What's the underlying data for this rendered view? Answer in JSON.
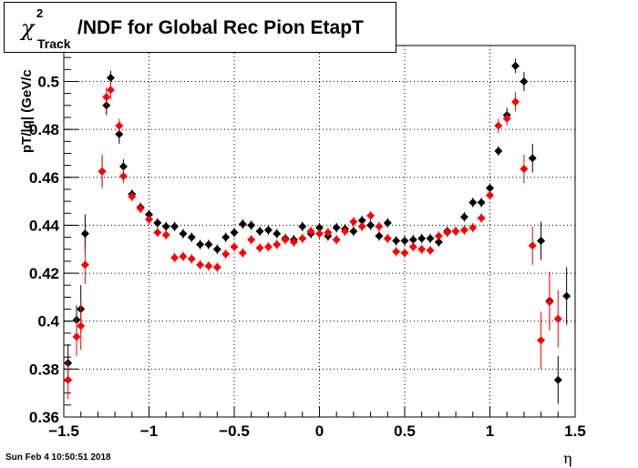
{
  "title": {
    "chi_symbol": "χ",
    "chi_superscript": "2",
    "chi_subscript": "Track",
    "text": "/NDF for Global Rec Pion EtapT"
  },
  "ylabel": "p_T/|q| (GeV/c)",
  "ylabel_visible": "pT/|q| (GeV/c",
  "xlabel": "η",
  "datestamp": "Sun Feb  4 10:50:51 2018",
  "colors": {
    "series_black": "#000000",
    "series_red": "#ff0000",
    "grid": "#000000"
  },
  "chart_data": {
    "type": "scatter",
    "xlim": [
      -1.5,
      1.5
    ],
    "ylim": [
      0.36,
      0.515
    ],
    "grid": true,
    "x_ticks": [
      "−1.5",
      "−1",
      "−0.5",
      "0",
      "0.5",
      "1",
      "1.5"
    ],
    "x_tick_values": [
      -1.5,
      -1,
      -0.5,
      0,
      0.5,
      1,
      1.5
    ],
    "y_ticks": [
      "0.36",
      "0.38",
      "0.4",
      "0.42",
      "0.44",
      "0.46",
      "0.48",
      "0.5"
    ],
    "y_tick_values": [
      0.36,
      0.38,
      0.4,
      0.42,
      0.44,
      0.46,
      0.48,
      0.5
    ],
    "series": [
      {
        "color": "black",
        "points": [
          [
            -1.475,
            0.3825,
            0.008
          ],
          [
            -1.425,
            0.4005,
            0.006
          ],
          [
            -1.4,
            0.405,
            0.01
          ],
          [
            -1.375,
            0.4365,
            0.008
          ],
          [
            -1.275,
            0.4625,
            0.006
          ],
          [
            -1.25,
            0.49,
            0.004
          ],
          [
            -1.225,
            0.5015,
            0.003
          ],
          [
            -1.175,
            0.478,
            0.004
          ],
          [
            -1.15,
            0.4645,
            0.003
          ],
          [
            -1.1,
            0.453,
            0.002
          ],
          [
            -1.05,
            0.4475,
            0.002
          ],
          [
            -1.0,
            0.4445,
            0.002
          ],
          [
            -0.95,
            0.441,
            0.002
          ],
          [
            -0.9,
            0.4395,
            0.002
          ],
          [
            -0.85,
            0.4395,
            0.002
          ],
          [
            -0.8,
            0.4365,
            0.002
          ],
          [
            -0.75,
            0.435,
            0.002
          ],
          [
            -0.7,
            0.432,
            0.002
          ],
          [
            -0.65,
            0.432,
            0.002
          ],
          [
            -0.6,
            0.43,
            0.002
          ],
          [
            -0.55,
            0.435,
            0.002
          ],
          [
            -0.5,
            0.437,
            0.002
          ],
          [
            -0.45,
            0.4405,
            0.002
          ],
          [
            -0.4,
            0.44,
            0.002
          ],
          [
            -0.35,
            0.4375,
            0.002
          ],
          [
            -0.3,
            0.438,
            0.002
          ],
          [
            -0.25,
            0.4365,
            0.002
          ],
          [
            -0.2,
            0.4345,
            0.002
          ],
          [
            -0.15,
            0.434,
            0.002
          ],
          [
            -0.1,
            0.4395,
            0.002
          ],
          [
            -0.05,
            0.4365,
            0.002
          ],
          [
            0.0,
            0.439,
            0.002
          ],
          [
            0.05,
            0.4355,
            0.002
          ],
          [
            0.1,
            0.439,
            0.002
          ],
          [
            0.15,
            0.4385,
            0.002
          ],
          [
            0.2,
            0.4375,
            0.002
          ],
          [
            0.25,
            0.442,
            0.002
          ],
          [
            0.3,
            0.44,
            0.002
          ],
          [
            0.35,
            0.4355,
            0.002
          ],
          [
            0.4,
            0.441,
            0.002
          ],
          [
            0.45,
            0.4335,
            0.002
          ],
          [
            0.5,
            0.4335,
            0.002
          ],
          [
            0.55,
            0.434,
            0.002
          ],
          [
            0.6,
            0.4345,
            0.002
          ],
          [
            0.65,
            0.4345,
            0.002
          ],
          [
            0.7,
            0.433,
            0.002
          ],
          [
            0.75,
            0.4375,
            0.002
          ],
          [
            0.8,
            0.4375,
            0.002
          ],
          [
            0.85,
            0.4435,
            0.002
          ],
          [
            0.9,
            0.4495,
            0.002
          ],
          [
            0.95,
            0.4495,
            0.002
          ],
          [
            1.0,
            0.4555,
            0.002
          ],
          [
            1.05,
            0.471,
            0.002
          ],
          [
            1.1,
            0.486,
            0.003
          ],
          [
            1.15,
            0.5065,
            0.003
          ],
          [
            1.2,
            0.5,
            0.004
          ],
          [
            1.25,
            0.468,
            0.006
          ],
          [
            1.3,
            0.4335,
            0.008
          ],
          [
            1.35,
            0.4085,
            0.012
          ],
          [
            1.4,
            0.3755,
            0.01
          ],
          [
            1.45,
            0.4105,
            0.012
          ]
        ]
      },
      {
        "color": "red",
        "points": [
          [
            -1.475,
            0.3755,
            0.008
          ],
          [
            -1.425,
            0.3935,
            0.008
          ],
          [
            -1.4,
            0.398,
            0.01
          ],
          [
            -1.375,
            0.4235,
            0.008
          ],
          [
            -1.275,
            0.4625,
            0.007
          ],
          [
            -1.25,
            0.4935,
            0.004
          ],
          [
            -1.225,
            0.4965,
            0.004
          ],
          [
            -1.175,
            0.4815,
            0.003
          ],
          [
            -1.15,
            0.4605,
            0.003
          ],
          [
            -1.1,
            0.452,
            0.002
          ],
          [
            -1.05,
            0.447,
            0.002
          ],
          [
            -1.0,
            0.4425,
            0.002
          ],
          [
            -0.95,
            0.437,
            0.002
          ],
          [
            -0.9,
            0.436,
            0.002
          ],
          [
            -0.85,
            0.4265,
            0.002
          ],
          [
            -0.8,
            0.427,
            0.002
          ],
          [
            -0.75,
            0.426,
            0.002
          ],
          [
            -0.7,
            0.4235,
            0.002
          ],
          [
            -0.65,
            0.423,
            0.002
          ],
          [
            -0.6,
            0.4225,
            0.002
          ],
          [
            -0.55,
            0.428,
            0.002
          ],
          [
            -0.5,
            0.431,
            0.002
          ],
          [
            -0.45,
            0.4285,
            0.002
          ],
          [
            -0.4,
            0.434,
            0.002
          ],
          [
            -0.35,
            0.4305,
            0.002
          ],
          [
            -0.3,
            0.431,
            0.002
          ],
          [
            -0.25,
            0.432,
            0.002
          ],
          [
            -0.2,
            0.434,
            0.002
          ],
          [
            -0.15,
            0.433,
            0.002
          ],
          [
            -0.1,
            0.4345,
            0.002
          ],
          [
            -0.05,
            0.4375,
            0.002
          ],
          [
            0.0,
            0.4365,
            0.002
          ],
          [
            0.05,
            0.437,
            0.002
          ],
          [
            0.1,
            0.434,
            0.002
          ],
          [
            0.15,
            0.4375,
            0.002
          ],
          [
            0.2,
            0.4415,
            0.002
          ],
          [
            0.25,
            0.4395,
            0.002
          ],
          [
            0.3,
            0.444,
            0.002
          ],
          [
            0.35,
            0.4395,
            0.002
          ],
          [
            0.4,
            0.4345,
            0.002
          ],
          [
            0.45,
            0.429,
            0.002
          ],
          [
            0.5,
            0.4285,
            0.002
          ],
          [
            0.55,
            0.431,
            0.002
          ],
          [
            0.6,
            0.43,
            0.002
          ],
          [
            0.65,
            0.4295,
            0.002
          ],
          [
            0.7,
            0.4355,
            0.002
          ],
          [
            0.75,
            0.437,
            0.002
          ],
          [
            0.8,
            0.4375,
            0.002
          ],
          [
            0.85,
            0.438,
            0.002
          ],
          [
            0.9,
            0.439,
            0.002
          ],
          [
            0.95,
            0.443,
            0.002
          ],
          [
            1.0,
            0.4525,
            0.002
          ],
          [
            1.05,
            0.4815,
            0.003
          ],
          [
            1.1,
            0.4845,
            0.003
          ],
          [
            1.15,
            0.4915,
            0.004
          ],
          [
            1.2,
            0.4635,
            0.006
          ],
          [
            1.25,
            0.4315,
            0.008
          ],
          [
            1.3,
            0.392,
            0.012
          ],
          [
            1.35,
            0.408,
            0.012
          ],
          [
            1.4,
            0.401,
            0.012
          ]
        ]
      }
    ]
  }
}
